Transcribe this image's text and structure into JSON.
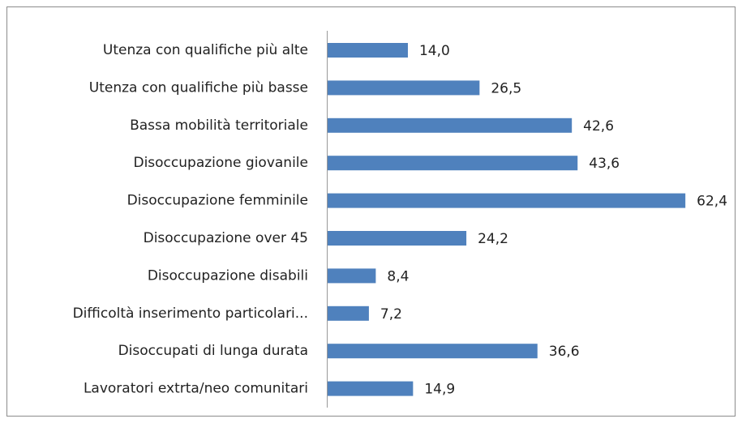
{
  "chart_data": {
    "type": "barh",
    "categories": [
      "Utenza con qualifiche più alte",
      "Utenza con qualifiche più basse",
      "Bassa mobilità territoriale",
      "Disoccupazione giovanile",
      "Disoccupazione femminile",
      "Disoccupazione over 45",
      "Disoccupazione disabili",
      "Difficoltà inserimento particolari...",
      "Disoccupati di lunga durata",
      "Lavoratori extrta/neo comunitari"
    ],
    "values": [
      14.0,
      26.5,
      42.6,
      43.6,
      62.4,
      24.2,
      8.4,
      7.2,
      36.6,
      14.9
    ],
    "value_labels": [
      "14,0",
      "26,5",
      "42,6",
      "43,6",
      "62,4",
      "24,2",
      "8,4",
      "7,2",
      "36,6",
      "14,9"
    ],
    "color": "#4f81bd"
  }
}
